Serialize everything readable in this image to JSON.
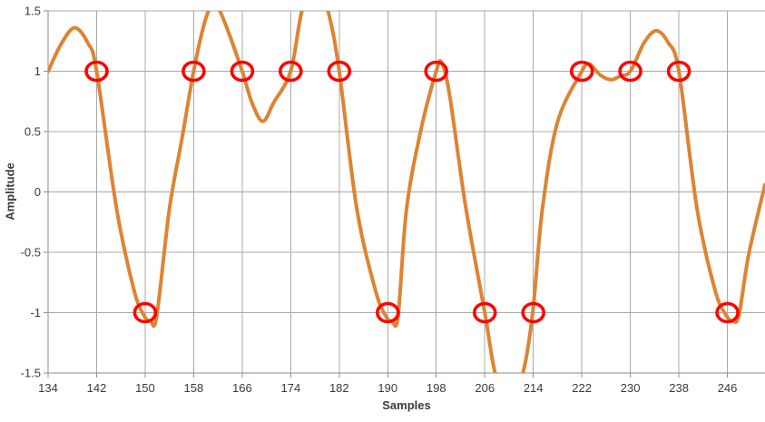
{
  "chart_data": {
    "type": "line",
    "title": "",
    "xlabel": "Samples",
    "ylabel": "Amplitude",
    "xlim": [
      134,
      252.2
    ],
    "ylim": [
      -1.5,
      1.5
    ],
    "x_ticks": [
      134,
      142,
      150,
      158,
      166,
      174,
      182,
      190,
      198,
      206,
      214,
      222,
      230,
      238,
      246
    ],
    "y_ticks": [
      1.5,
      1,
      0.5,
      0,
      -0.5,
      -1,
      -1.5
    ],
    "y_tick_labels": [
      "1.5",
      "1",
      "0.5",
      "0",
      "-0.5",
      "-1",
      "-1.5"
    ],
    "grid": true,
    "legend": false,
    "series": [
      {
        "name": "interpolated_waveform",
        "color": "#DD8433",
        "keypoints": [
          [
            134,
            1.0
          ],
          [
            136.2,
            1.23
          ],
          [
            138.4,
            1.36
          ],
          [
            140.6,
            1.23
          ],
          [
            142,
            1.0
          ],
          [
            145.3,
            -0.14
          ],
          [
            148.2,
            -0.82
          ],
          [
            149.9,
            -1.03
          ],
          [
            150.9,
            -1.07
          ],
          [
            151.9,
            -1.03
          ],
          [
            154,
            -0.14
          ],
          [
            156.1,
            0.45
          ],
          [
            158,
            1.0
          ],
          [
            159.9,
            1.42
          ],
          [
            161.4,
            1.56
          ],
          [
            163,
            1.42
          ],
          [
            166,
            1.0
          ],
          [
            167.6,
            0.74
          ],
          [
            169.4,
            0.585
          ],
          [
            171.2,
            0.74
          ],
          [
            174,
            1.0
          ],
          [
            175.8,
            1.49
          ],
          [
            178,
            1.8
          ],
          [
            180.2,
            1.49
          ],
          [
            182,
            1.0
          ],
          [
            184.9,
            -0.14
          ],
          [
            188,
            -0.82
          ],
          [
            189.7,
            -1.03
          ],
          [
            190.7,
            -1.07
          ],
          [
            191.7,
            -1.03
          ],
          [
            193.1,
            -0.14
          ],
          [
            195.5,
            0.52
          ],
          [
            198,
            1.0
          ],
          [
            198.9,
            1.07
          ],
          [
            200.2,
            0.8
          ],
          [
            202.9,
            -0.14
          ],
          [
            206,
            -1.0
          ],
          [
            207.7,
            -1.5
          ],
          [
            210,
            -1.8
          ],
          [
            212.3,
            -1.5
          ],
          [
            213.9,
            -1.0
          ],
          [
            215.5,
            -0.14
          ],
          [
            218,
            0.58
          ],
          [
            222,
            1.0
          ],
          [
            223.2,
            1.06
          ],
          [
            225,
            0.97
          ],
          [
            226.8,
            0.93
          ],
          [
            228.3,
            0.96
          ],
          [
            230,
            1.0
          ],
          [
            232.3,
            1.24
          ],
          [
            234.3,
            1.335
          ],
          [
            236.2,
            1.24
          ],
          [
            238,
            1.0
          ],
          [
            241,
            -0.14
          ],
          [
            244,
            -0.82
          ],
          [
            245.9,
            -1.03
          ],
          [
            246.9,
            -1.07
          ],
          [
            247.9,
            -1.02
          ],
          [
            249.5,
            -0.52
          ],
          [
            252.2,
            0.06
          ]
        ]
      }
    ],
    "markers": {
      "name": "circled_sample_points",
      "color": "#FF0000",
      "points": [
        [
          142,
          1
        ],
        [
          150,
          -1
        ],
        [
          158,
          1
        ],
        [
          166,
          1
        ],
        [
          174,
          1
        ],
        [
          182,
          1
        ],
        [
          190,
          -1
        ],
        [
          198,
          1
        ],
        [
          206,
          -1
        ],
        [
          214,
          -1
        ],
        [
          222,
          1
        ],
        [
          230,
          1
        ],
        [
          238,
          1
        ],
        [
          246,
          -1
        ]
      ]
    },
    "colors": {
      "curve": "#DD8433",
      "marker": "#FF0000",
      "grid": "#A9A9A9",
      "axis": "#8E8E8E",
      "text": "#3B3B3B",
      "background": "#FFFFFF"
    }
  }
}
